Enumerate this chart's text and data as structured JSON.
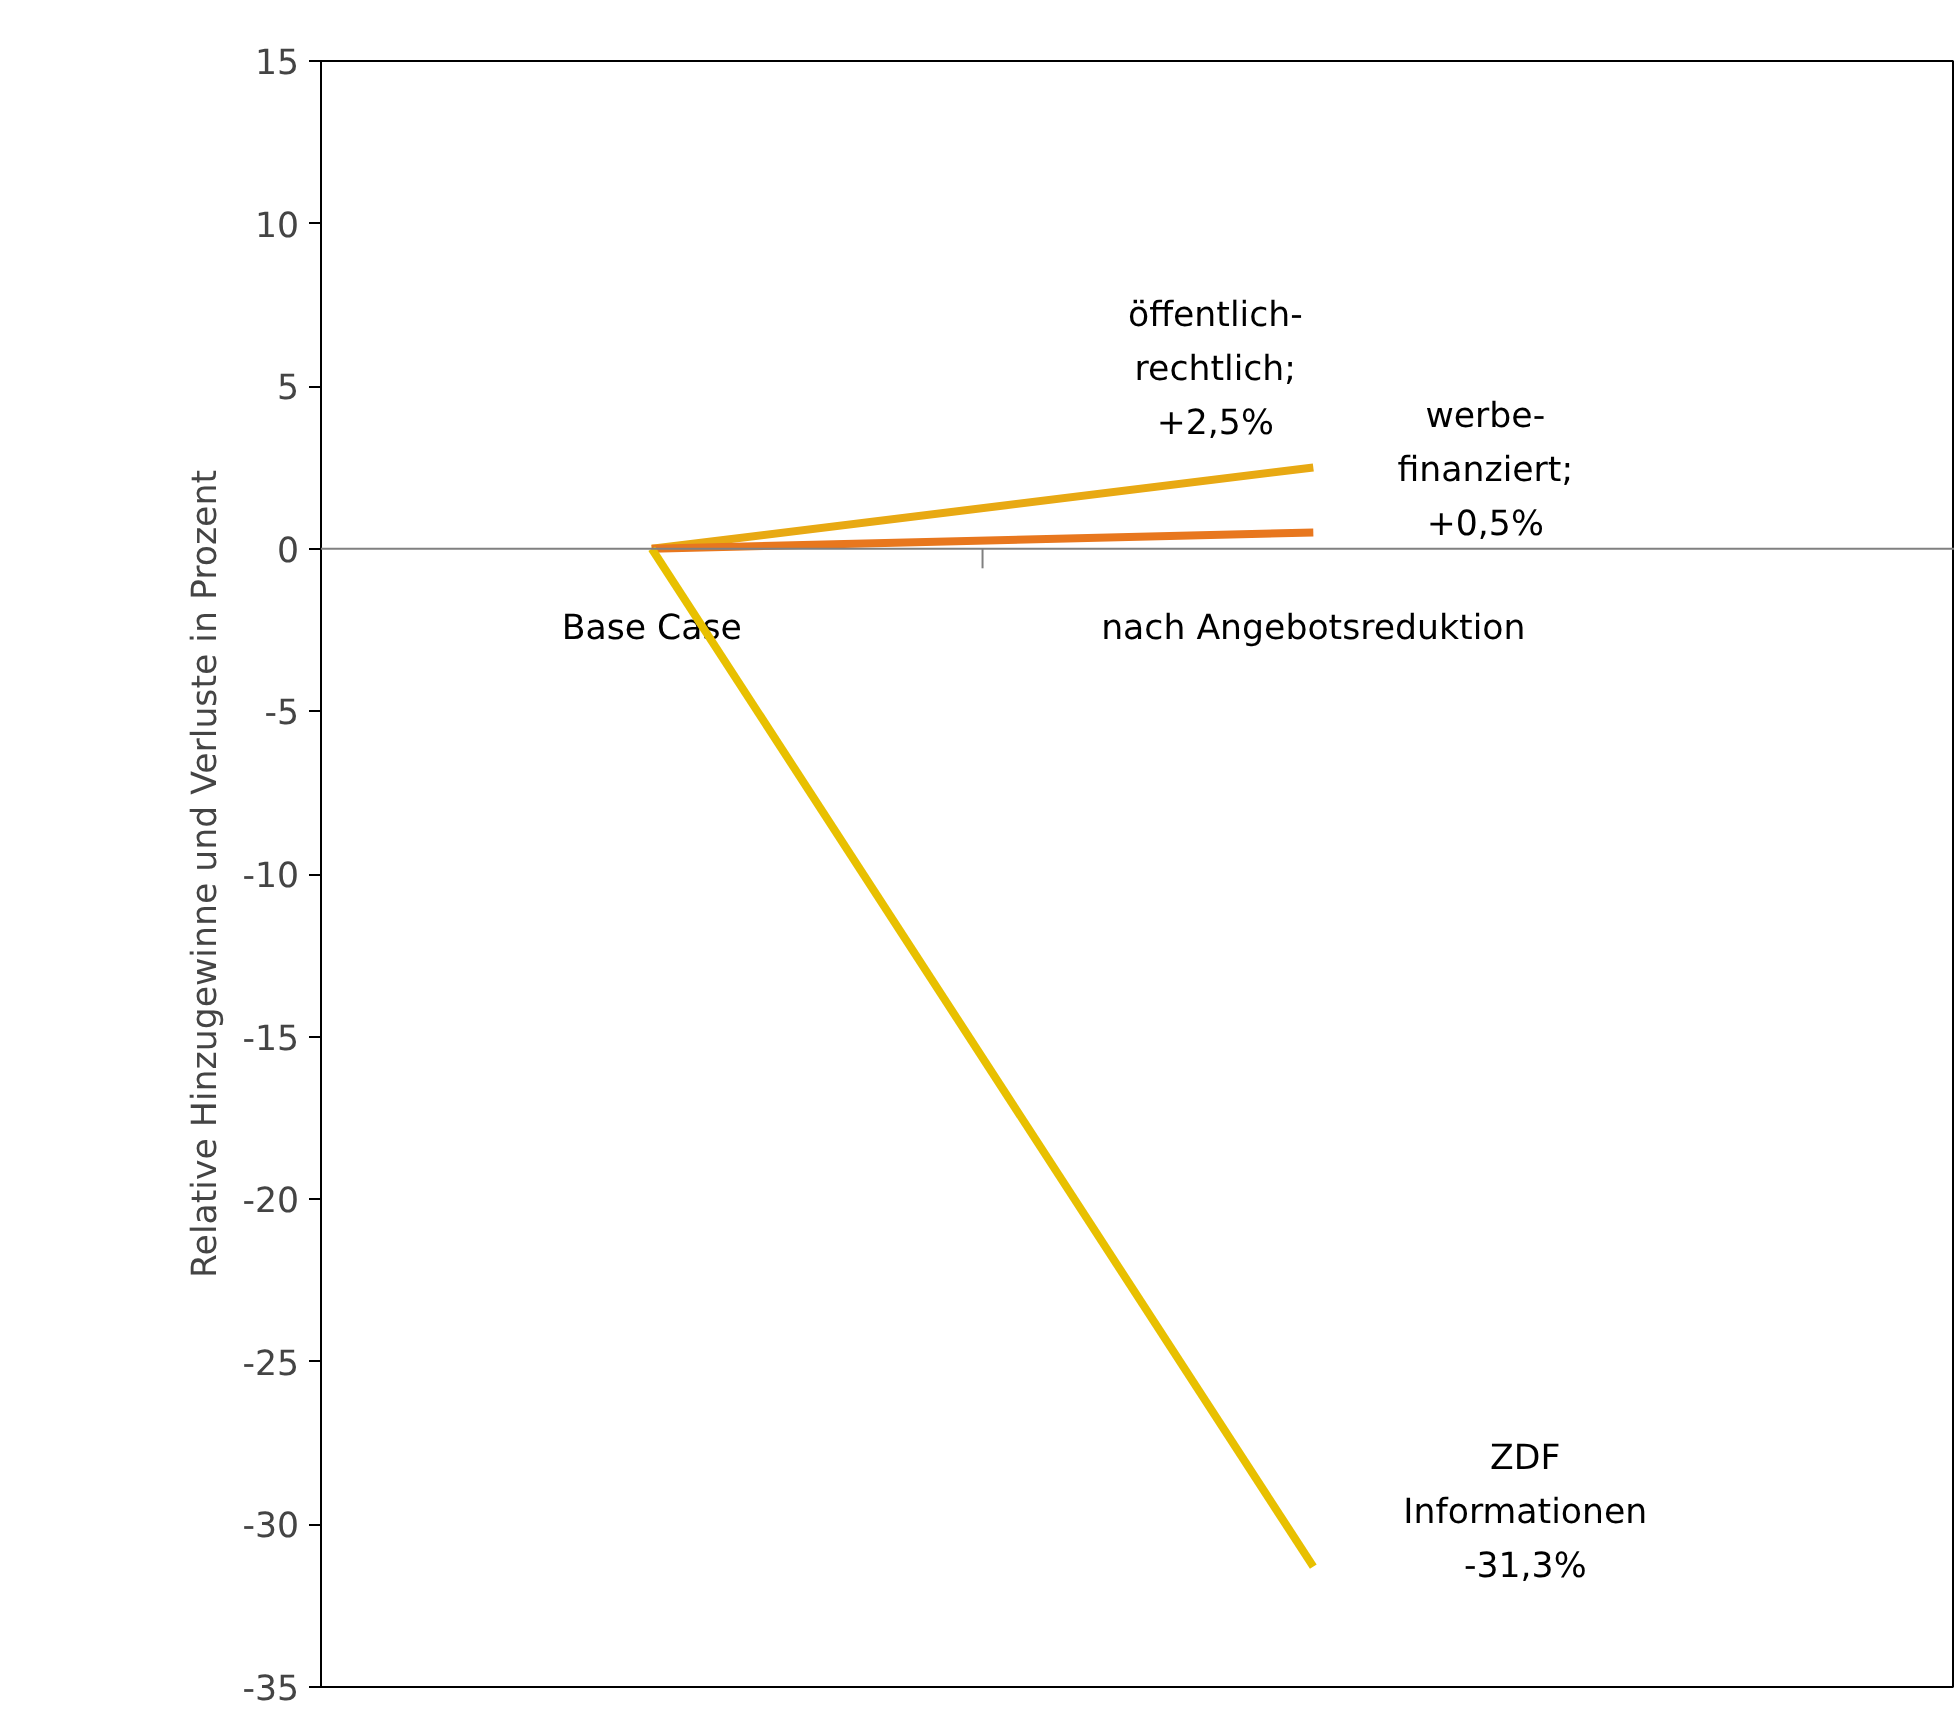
{
  "chart_data": {
    "type": "line",
    "ylabel": "Relative Hinzugewinne und Verluste in Prozent",
    "categories": [
      "Base Case",
      "nach Angebotsreduktion"
    ],
    "series": [
      {
        "color": "#e8a913",
        "values": [
          0,
          2.5
        ]
      },
      {
        "color": "#e8771e",
        "values": [
          0,
          0.5
        ]
      },
      {
        "color": "#e8c000",
        "values": [
          0,
          -31.3
        ]
      }
    ],
    "annotations": [
      {
        "text": "öffentlich-\nrechtlich;\n+2,5%",
        "x": "nach Angebotsreduktion",
        "y": 2.5
      },
      {
        "text": "werbe-\nfinanziert;\n+0,5%",
        "x": "nach Angebotsreduktion",
        "y": 0.5
      },
      {
        "text": "ZDF\nInformationen\n-31,3%",
        "x": "nach Angebotsreduktion",
        "y": -31.3
      }
    ],
    "ylim": [
      -35,
      15
    ],
    "yticks": [
      -35,
      -30,
      -25,
      -20,
      -15,
      -10,
      -5,
      0,
      5,
      10,
      15
    ],
    "grid": false,
    "marker": "none",
    "line_style": "solid"
  }
}
